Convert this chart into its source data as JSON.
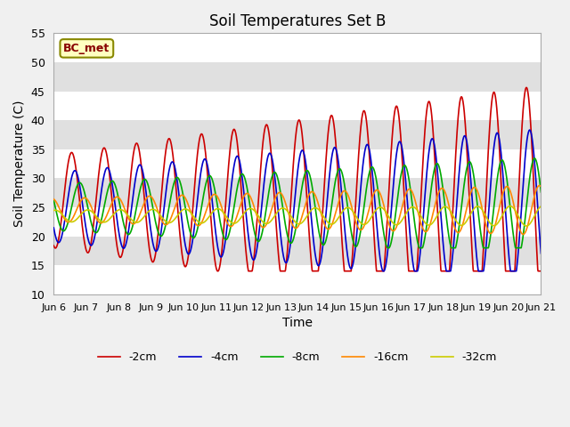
{
  "title": "Soil Temperatures Set B",
  "xlabel": "Time",
  "ylabel": "Soil Temperature (C)",
  "ylim": [
    10,
    55
  ],
  "xlim_days": [
    0,
    15
  ],
  "annotation": "BC_met",
  "legend": [
    "-2cm",
    "-4cm",
    "-8cm",
    "-16cm",
    "-32cm"
  ],
  "colors": [
    "#cc0000",
    "#0000cc",
    "#00aa00",
    "#ff8800",
    "#cccc00"
  ],
  "background_color": "#f0f0f0",
  "plot_bg_color": "#e8e8e8",
  "x_tick_labels": [
    "Jun 6",
    "Jun 7",
    "Jun 8",
    "Jun 9",
    "Jun 10",
    "Jun 11",
    "Jun 12",
    "Jun 13",
    "Jun 14",
    "Jun 15",
    "Jun 16",
    "Jun 17",
    "Jun 18",
    "Jun 19",
    "Jun 20",
    "Jun 21"
  ],
  "x_tick_positions": [
    0,
    1,
    2,
    3,
    4,
    5,
    6,
    7,
    8,
    9,
    10,
    11,
    12,
    13,
    14,
    15
  ],
  "y_ticks": [
    10,
    15,
    20,
    25,
    30,
    35,
    40,
    45,
    50,
    55
  ]
}
